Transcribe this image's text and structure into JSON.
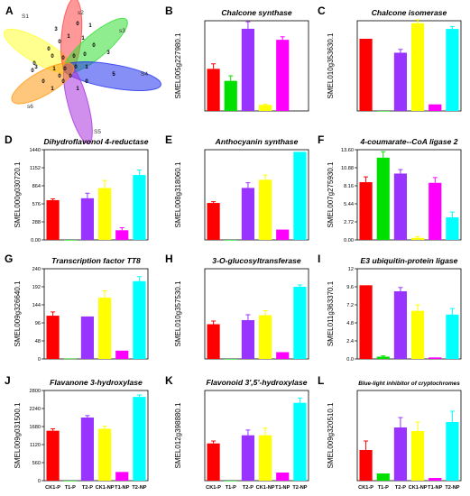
{
  "categories": [
    "CK1-P",
    "T1-P",
    "T2-P",
    "CK1-NP",
    "T1-NP",
    "T2-NP"
  ],
  "bar_colors": [
    "#ff0000",
    "#00e000",
    "#9933ff",
    "#ffff00",
    "#ff00ff",
    "#00ffff"
  ],
  "venn": {
    "panel_label": "A",
    "sets": [
      {
        "label": "S1",
        "color": "#ffff33"
      },
      {
        "label": "s2",
        "color": "#ff4444"
      },
      {
        "label": "s3",
        "color": "#33dd33"
      },
      {
        "label": "S4",
        "color": "#2233ee"
      },
      {
        "label": "S5",
        "color": "#aa33dd"
      },
      {
        "label": "s6",
        "color": "#ff9911"
      }
    ],
    "counts": [
      "3",
      "0",
      "1",
      "0",
      "3",
      "0",
      "0",
      "0",
      "1",
      "1",
      "0",
      "3",
      "0",
      "0",
      "0",
      "0",
      "1",
      "0",
      "0",
      "1",
      "5",
      "0",
      "1",
      "0",
      "1",
      "0",
      "0",
      "0"
    ]
  },
  "chart_data": [
    {
      "type": "bar",
      "panel": "B",
      "title": "Chalcone synthase",
      "ylabel": "SMEL005g227980.1",
      "ylim": [
        0,
        450
      ],
      "yticks": [],
      "values": [
        210,
        150,
        410,
        30,
        355,
        null
      ],
      "errors": [
        25,
        25,
        35,
        3,
        15,
        null
      ]
    },
    {
      "type": "bar",
      "panel": "C",
      "title": "Chalcone isomerase",
      "ylabel": "SMEL010g353630.1",
      "ylim": [
        0,
        550
      ],
      "yticks": [],
      "values": [
        440,
        0,
        355,
        535,
        40,
        500
      ],
      "errors": [
        0,
        0,
        20,
        20,
        0,
        15
      ]
    },
    {
      "type": "bar",
      "panel": "D",
      "title": "Dihydroflavonol 4-reductase",
      "ylabel": "SMEL000g030720.1",
      "ylim": [
        0,
        1440
      ],
      "yticks": [
        "0.00",
        "288",
        "576",
        "864",
        "1152",
        "1440"
      ],
      "values": [
        634,
        0,
        665,
        828,
        154,
        1036
      ],
      "errors": [
        20,
        0,
        80,
        120,
        40,
        80
      ]
    },
    {
      "type": "bar",
      "panel": "E",
      "title": "Anthocyanin synthase",
      "ylabel": "SMEL008g318060.1",
      "ylim": [
        0,
        2100
      ],
      "yticks": [],
      "values": [
        860,
        0,
        1210,
        1400,
        240,
        2050
      ],
      "errors": [
        30,
        0,
        120,
        110,
        0,
        0
      ]
    },
    {
      "type": "bar",
      "panel": "F",
      "title": "4-coumarate--CoA ligase 2",
      "ylabel": "SMEL007g275930.1",
      "ylim": [
        0,
        13.6
      ],
      "yticks": [
        "0.00",
        "2.72",
        "5.44",
        "8.16",
        "10.88",
        "13.60"
      ],
      "values": [
        8.7,
        12.4,
        10.0,
        0.3,
        8.6,
        3.4
      ],
      "errors": [
        0.8,
        0.9,
        0.6,
        0.2,
        0.8,
        0.8
      ]
    },
    {
      "type": "bar",
      "panel": "G",
      "title": "Transcription factor TT8",
      "ylabel": "SMEL009g326640.1",
      "ylim": [
        0,
        240
      ],
      "yticks": [
        "0",
        "48",
        "96",
        "144",
        "192",
        "240"
      ],
      "values": [
        115,
        1,
        113,
        163,
        22,
        207
      ],
      "errors": [
        10,
        0,
        0,
        18,
        0,
        12
      ]
    },
    {
      "type": "bar",
      "panel": "H",
      "title": "3-O-glucosyltransferase",
      "ylabel": "SMEL010g357530.1",
      "ylim": [
        0,
        2000
      ],
      "yticks": [],
      "values": [
        770,
        0,
        860,
        970,
        150,
        1600
      ],
      "errors": [
        70,
        0,
        120,
        100,
        0,
        40
      ]
    },
    {
      "type": "bar",
      "panel": "I",
      "title": "E3 ubiquitin-protein ligase",
      "ylabel": "SMEL011g363370.1",
      "ylim": [
        0,
        12
      ],
      "yticks": [
        "0.0",
        "2.4",
        "4.8",
        "7.2",
        "9.6",
        "12"
      ],
      "values": [
        9.8,
        0.3,
        9.0,
        6.4,
        0.2,
        5.9
      ],
      "errors": [
        0,
        0.1,
        0.5,
        0.8,
        0,
        0.8
      ]
    },
    {
      "type": "bar",
      "panel": "J",
      "title": "Flavanone 3-hydroxylase",
      "ylabel": "SMEL009g031500.1",
      "ylim": [
        0,
        2800
      ],
      "yticks": [
        "0",
        "560",
        "1120",
        "1680",
        "2240",
        "2800"
      ],
      "values": [
        1550,
        0,
        1960,
        1610,
        270,
        2600
      ],
      "errors": [
        60,
        0,
        60,
        80,
        0,
        60
      ]
    },
    {
      "type": "bar",
      "panel": "K",
      "title": "Flavonoid 3',5'-hydroxylase",
      "ylabel": "SMEL012g398880.1",
      "ylim": [
        0,
        18880
      ],
      "yticks": [],
      "values": [
        7800,
        0,
        9500,
        9500,
        1700,
        16300
      ],
      "errors": [
        500,
        0,
        1100,
        1500,
        0,
        1000
      ]
    },
    {
      "type": "bar",
      "panel": "L",
      "title": "Blue-light inhibitor of cryptochromes",
      "ylabel": "SMEL009g320510.1",
      "ylim": [
        0,
        10
      ],
      "yticks": [],
      "values": [
        3.4,
        0.8,
        5.9,
        5.5,
        0.3,
        6.5
      ],
      "errors": [
        1.0,
        0,
        1.1,
        1.0,
        0,
        1.2
      ]
    }
  ]
}
